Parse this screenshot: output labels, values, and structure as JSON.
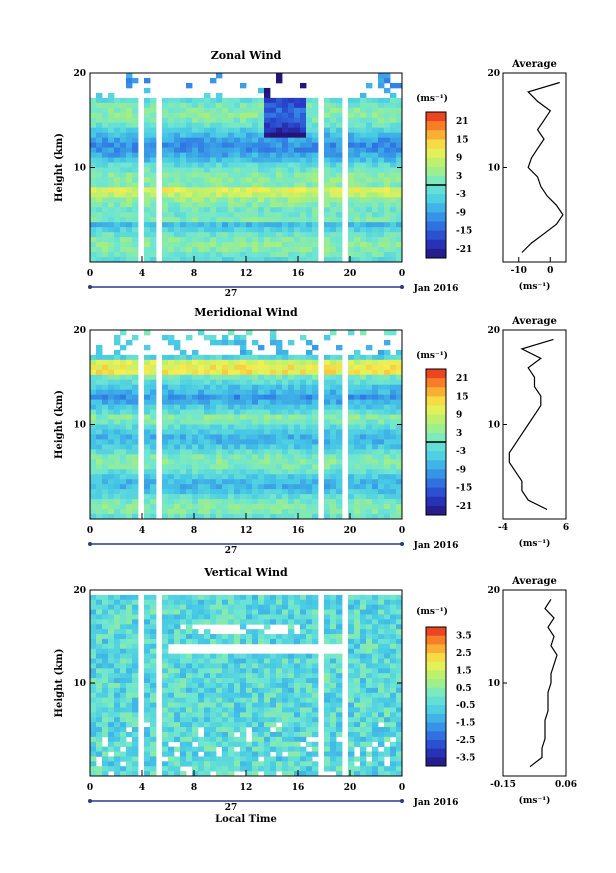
{
  "figure": {
    "date_label": "Jan 2016",
    "day_label": "27",
    "xlabel_bottom": "Local Time",
    "profile_title": "Average",
    "unit": "(ms⁻¹)",
    "ylabel": "Height (km)"
  },
  "chart_data": [
    {
      "type": "heatmap",
      "title": "Zonal Wind",
      "x_ticks": [
        "0",
        "4",
        "8",
        "12",
        "16",
        "20",
        "0"
      ],
      "y_ticks": [
        "10",
        "20"
      ],
      "ylim": [
        0,
        20
      ],
      "colorbar_ticks": [
        "21",
        "15",
        "9",
        "3",
        "-3",
        "-9",
        "-15",
        "-21"
      ],
      "colorbar_range": [
        -24,
        24
      ],
      "profile": {
        "xlim": [
          -15,
          5
        ],
        "x_ticks": [
          "-10",
          "0"
        ],
        "height": [
          1,
          2,
          3,
          4,
          5,
          6,
          7,
          8,
          9,
          10,
          11,
          12,
          13,
          14,
          15,
          16,
          17,
          18,
          19
        ],
        "values": [
          -9,
          -6,
          -2,
          2,
          4,
          2,
          -1,
          -3,
          -4,
          -7,
          -6,
          -4,
          -2,
          -4,
          -2,
          0,
          -4,
          -7,
          3
        ]
      }
    },
    {
      "type": "heatmap",
      "title": "Meridional Wind",
      "x_ticks": [
        "0",
        "4",
        "8",
        "12",
        "16",
        "20",
        "0"
      ],
      "y_ticks": [
        "10",
        "20"
      ],
      "ylim": [
        0,
        20
      ],
      "colorbar_ticks": [
        "21",
        "15",
        "9",
        "3",
        "-3",
        "-9",
        "-15",
        "-21"
      ],
      "colorbar_range": [
        -24,
        24
      ],
      "profile": {
        "xlim": [
          -4,
          6
        ],
        "x_ticks": [
          "-4",
          "6"
        ],
        "height": [
          1,
          2,
          3,
          4,
          5,
          6,
          7,
          8,
          9,
          10,
          11,
          12,
          13,
          14,
          15,
          16,
          17,
          18,
          19
        ],
        "values": [
          3,
          0,
          -1,
          -1,
          -2,
          -3,
          -3,
          -2,
          -1,
          0,
          1,
          2,
          2,
          1,
          1,
          0,
          2,
          -1,
          4
        ]
      }
    },
    {
      "type": "heatmap",
      "title": "Vertical Wind",
      "x_ticks": [
        "0",
        "4",
        "8",
        "12",
        "16",
        "20",
        "0"
      ],
      "y_ticks": [
        "10",
        "20"
      ],
      "ylim": [
        0,
        20
      ],
      "colorbar_ticks": [
        "3.5",
        "2.5",
        "1.5",
        "0.5",
        "-0.5",
        "-1.5",
        "-2.5",
        "-3.5"
      ],
      "colorbar_range": [
        -4,
        4
      ],
      "profile": {
        "xlim": [
          -0.15,
          0.06
        ],
        "x_ticks": [
          "-0.15",
          "0.06"
        ],
        "height": [
          1,
          2,
          3,
          4,
          5,
          6,
          7,
          8,
          9,
          10,
          11,
          12,
          13,
          14,
          15,
          16,
          17,
          18,
          19
        ],
        "values": [
          -0.06,
          -0.02,
          -0.02,
          -0.01,
          -0.01,
          -0.01,
          0.0,
          0.0,
          0.0,
          0.01,
          0.01,
          0.02,
          0.03,
          0.01,
          0.02,
          0.0,
          0.02,
          -0.01,
          0.01
        ]
      }
    }
  ]
}
